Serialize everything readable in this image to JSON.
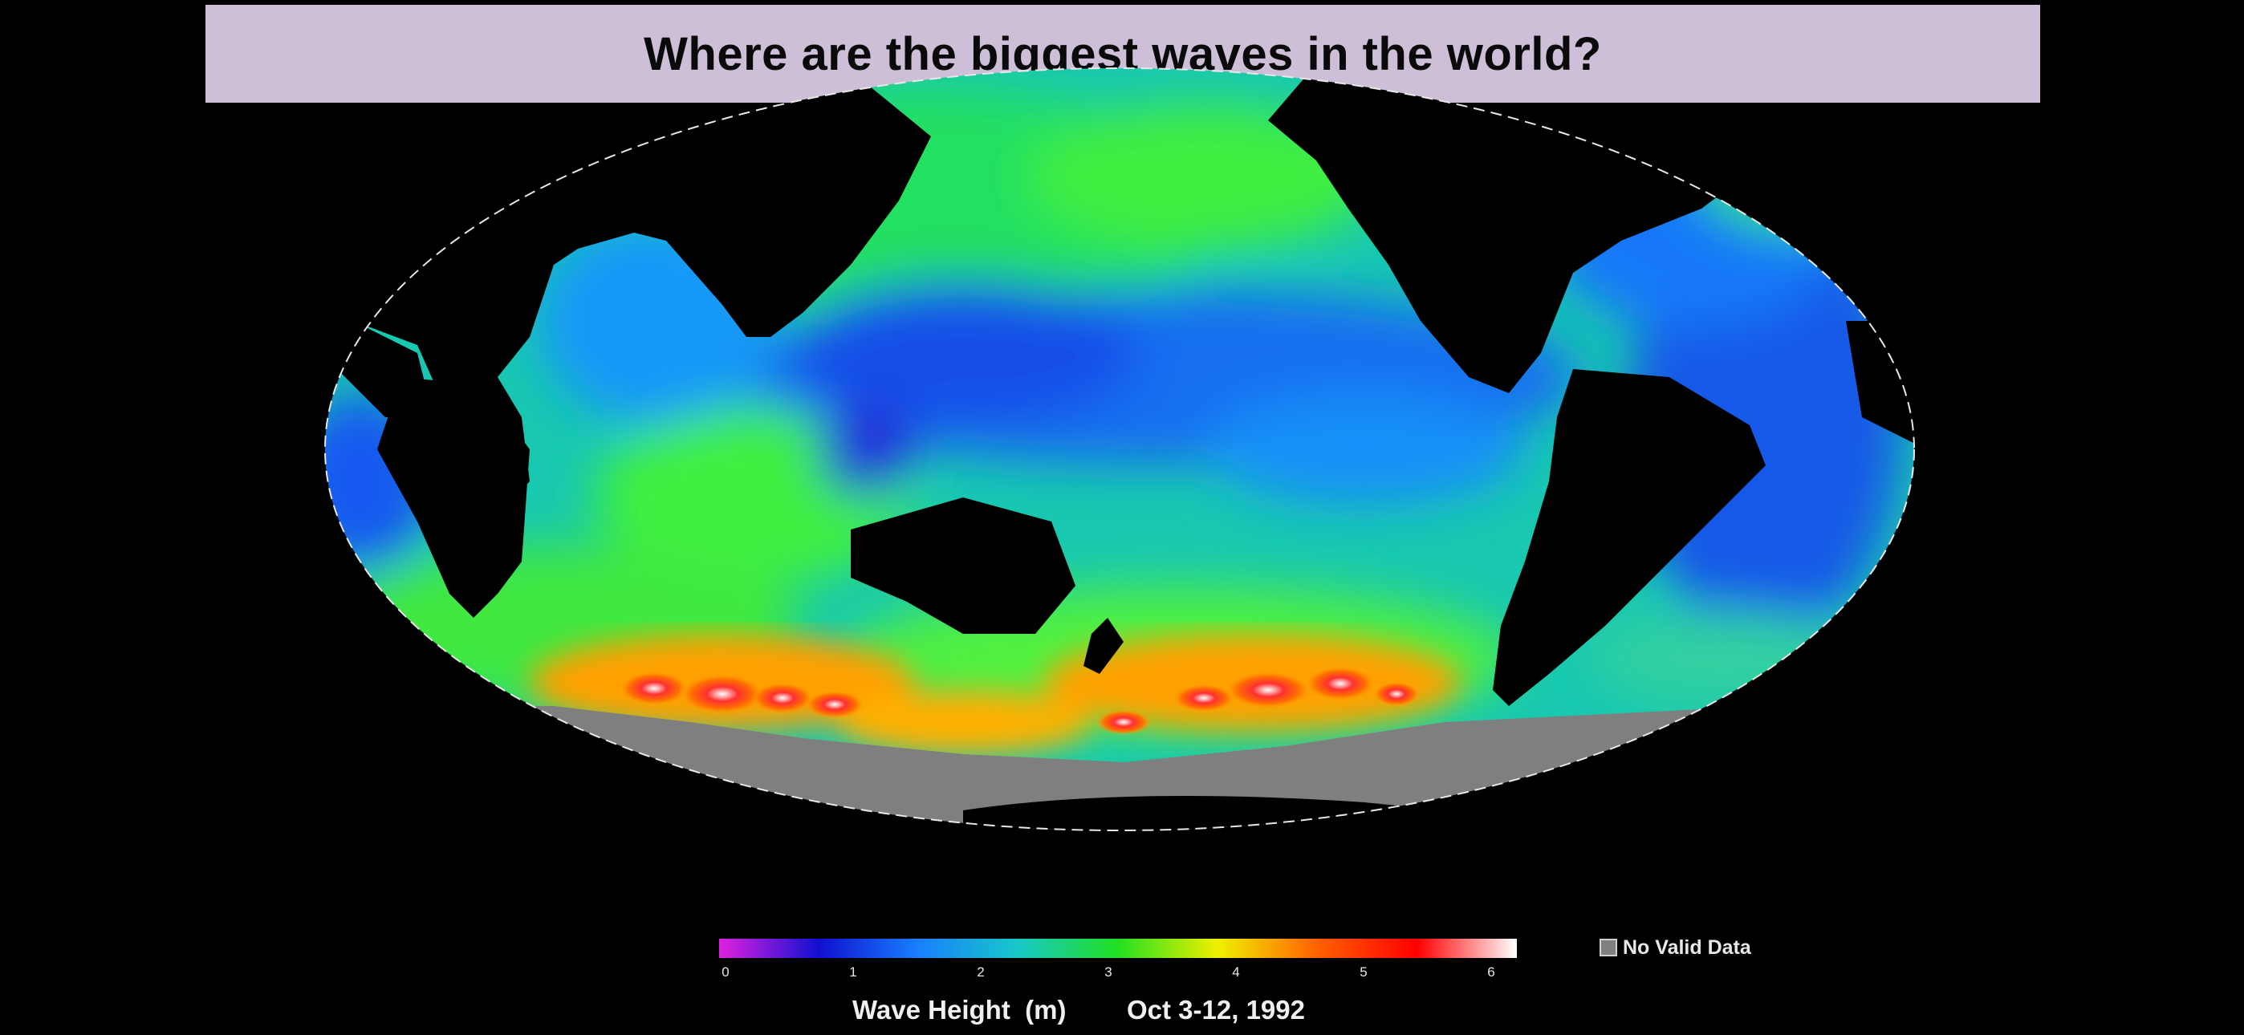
{
  "title": "Where are the biggest waves in the world?",
  "legend": {
    "colors": [
      "#e020e0",
      "#1010d0",
      "#1880ff",
      "#18c8c8",
      "#20e020",
      "#f0f000",
      "#ff6000",
      "#ff0000",
      "#ffffff"
    ],
    "range": [
      0,
      6
    ],
    "ticks": [
      "0",
      "1",
      "2",
      "3",
      "4",
      "5",
      "6"
    ],
    "nodata_label": "No Valid Data",
    "nodata_color": "#808080",
    "caption_unit": "Wave Height  (m)",
    "caption_date": "Oct 3-12, 1992"
  },
  "map": {
    "projection": "mollweide",
    "ocean_background_color": "#18d0a0",
    "land_color": "#000000",
    "antarctic_color": "#7f7f7f"
  }
}
